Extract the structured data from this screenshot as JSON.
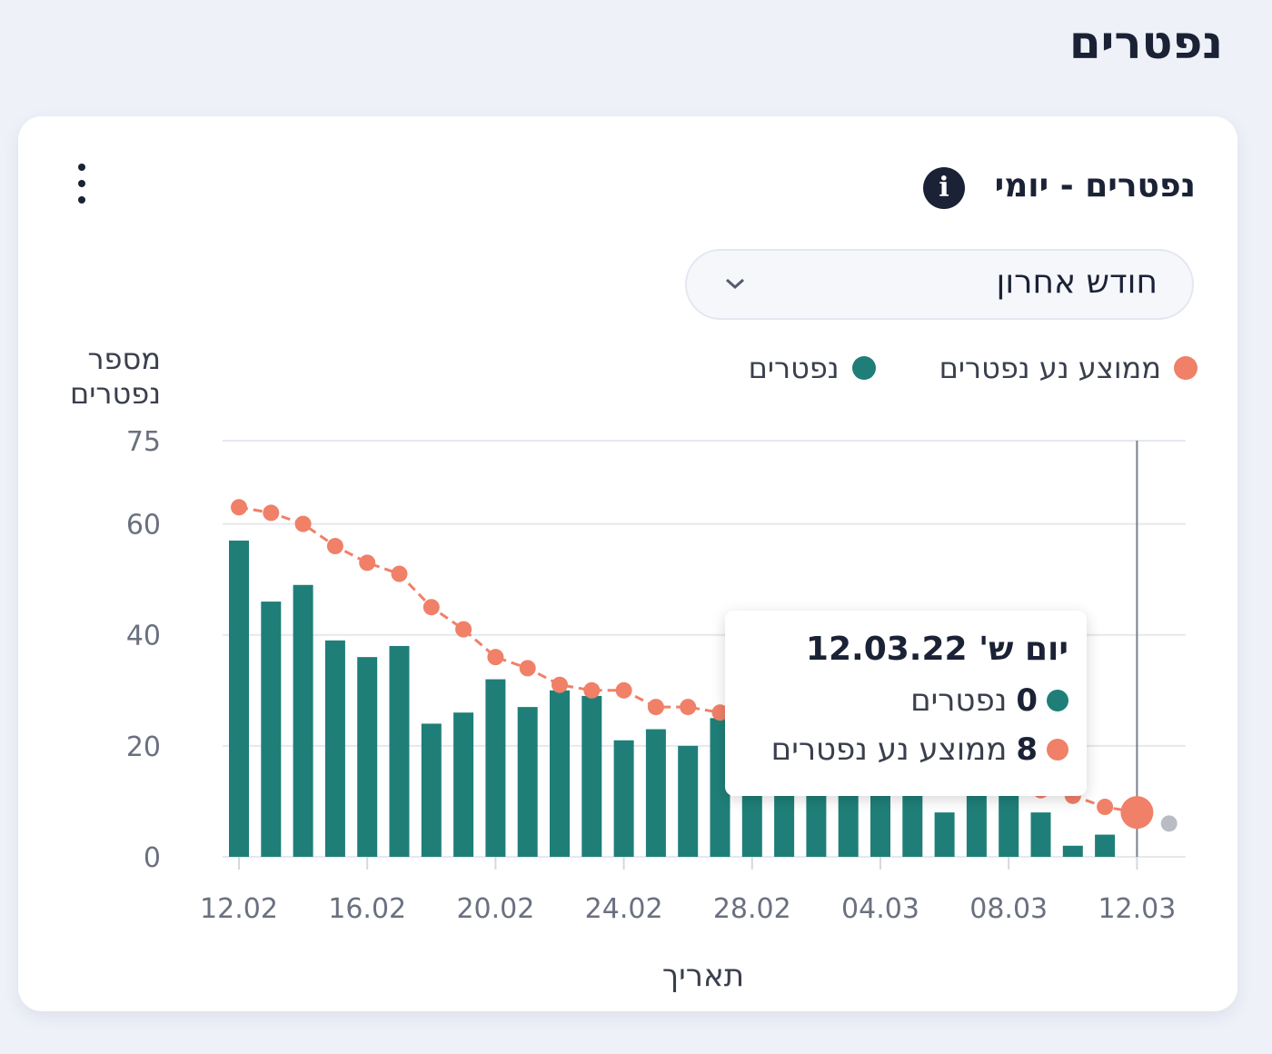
{
  "page": {
    "title": "נפטרים"
  },
  "card": {
    "title": "נפטרים - יומי",
    "info_icon": "info-icon",
    "menu_icon": "kebab-menu-icon",
    "range_select": {
      "value": "חודש אחרון",
      "icon": "chevron-down-icon"
    }
  },
  "chart_data": {
    "type": "bar",
    "ylabel": "מספר נפטרים",
    "xlabel": "תאריך",
    "ylim": [
      0,
      75
    ],
    "yticks": [
      0,
      20,
      40,
      60,
      75
    ],
    "xtick_labels": [
      "12.02",
      "16.02",
      "20.02",
      "24.02",
      "28.02",
      "04.03",
      "08.03",
      "12.03"
    ],
    "x": [
      "12.02",
      "13.02",
      "14.02",
      "15.02",
      "16.02",
      "17.02",
      "18.02",
      "19.02",
      "20.02",
      "21.02",
      "22.02",
      "23.02",
      "24.02",
      "25.02",
      "26.02",
      "27.02",
      "28.02",
      "01.03",
      "02.03",
      "03.03",
      "04.03",
      "05.03",
      "06.03",
      "07.03",
      "08.03",
      "09.03",
      "10.03",
      "11.03",
      "12.03",
      "13.03"
    ],
    "legend_position": "top-right",
    "grid": true,
    "series": [
      {
        "name": "נפטרים",
        "type": "bar",
        "color": "#1f7f78",
        "values": [
          57,
          46,
          49,
          39,
          36,
          38,
          24,
          26,
          32,
          27,
          30,
          29,
          21,
          23,
          20,
          25,
          15,
          13,
          12,
          12,
          13,
          12,
          8,
          11,
          12,
          8,
          2,
          4,
          0,
          null
        ]
      },
      {
        "name": "ממוצע נע נפטרים",
        "type": "line",
        "color": "#f08068",
        "values": [
          63,
          62,
          60,
          56,
          53,
          51,
          45,
          41,
          36,
          34,
          31,
          30,
          30,
          27,
          27,
          26,
          24,
          22,
          20,
          19,
          17,
          16,
          15,
          14,
          13,
          12,
          11,
          9,
          8,
          6
        ]
      }
    ],
    "tooltip": {
      "title": "יום ש' 12.03.22",
      "rows": [
        {
          "value": "0",
          "label": "נפטרים",
          "color": "#1f7f78"
        },
        {
          "value": "8",
          "label": "ממוצע נע נפטרים",
          "color": "#f08068"
        }
      ]
    }
  }
}
